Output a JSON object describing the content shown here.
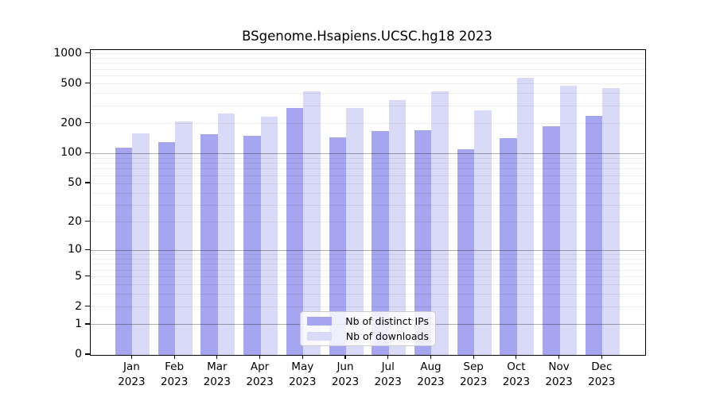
{
  "title": "BSgenome.Hsapiens.UCSC.hg18 2023",
  "colors": {
    "distinct_ips_bar": "#a5a5f0",
    "downloads_bar": "#d9d9f8",
    "major_grid": "rgba(0,0,0,0.32)",
    "minor_grid": "rgba(0,0,0,0.07)",
    "axis": "#000000",
    "legend_border": "#cccccc"
  },
  "legend": {
    "items": [
      {
        "label": "Nb of distinct IPs",
        "color_key": "distinct_ips_bar"
      },
      {
        "label": "Nb of downloads",
        "color_key": "downloads_bar"
      }
    ]
  },
  "chart_data": {
    "type": "bar",
    "title": "BSgenome.Hsapiens.UCSC.hg18 2023",
    "categories": [
      "Jan",
      "Feb",
      "Mar",
      "Apr",
      "May",
      "Jun",
      "Jul",
      "Aug",
      "Sep",
      "Oct",
      "Nov",
      "Dec"
    ],
    "year_label": "2023",
    "series": [
      {
        "name": "Nb of distinct IPs",
        "color": "#a5a5f0",
        "values": [
          115,
          130,
          157,
          150,
          287,
          147,
          169,
          171,
          111,
          144,
          187,
          239
        ]
      },
      {
        "name": "Nb of downloads",
        "color": "#d9d9f8",
        "values": [
          160,
          212,
          254,
          235,
          422,
          287,
          345,
          422,
          270,
          575,
          480,
          455
        ]
      }
    ],
    "xlabel": "",
    "ylabel": "",
    "y_scale": "log1p",
    "ylim": [
      0,
      1000
    ],
    "y_ticks": [
      0,
      1,
      2,
      5,
      10,
      20,
      50,
      100,
      200,
      500,
      1000
    ],
    "grid": "horizontal log gridlines on; majors at 1, 10, 100; minors at 2-9 per decade",
    "legend_position": "inside bottom-center"
  }
}
